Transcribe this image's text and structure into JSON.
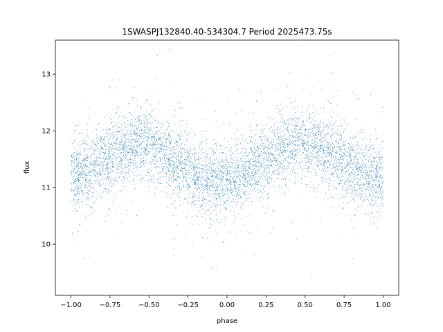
{
  "chart_data": {
    "type": "scatter",
    "title": "1SWASPJ132840.40-534304.7 Period 2025473.75s",
    "xlabel": "phase",
    "ylabel": "flux",
    "xlim": [
      -1.1,
      1.1
    ],
    "ylim": [
      9.1,
      13.6
    ],
    "x_ticks": [
      -1.0,
      -0.75,
      -0.5,
      -0.25,
      0.0,
      0.25,
      0.5,
      0.75,
      1.0
    ],
    "x_tick_labels": [
      "−1.00",
      "−0.75",
      "−0.50",
      "−0.25",
      "0.00",
      "0.25",
      "0.50",
      "0.75",
      "1.00"
    ],
    "y_ticks": [
      10,
      11,
      12,
      13
    ],
    "y_tick_labels": [
      "10",
      "11",
      "12",
      "13"
    ],
    "grid": false,
    "marker_color": "#1f77b4",
    "series": [
      {
        "x": [
          -1.0,
          -0.95,
          -0.9,
          -0.85,
          -0.8,
          -0.75,
          -0.7,
          -0.65,
          -0.6,
          -0.55,
          -0.5,
          -0.45,
          -0.4,
          -0.35,
          -0.3,
          -0.25,
          -0.2,
          -0.15,
          -0.1,
          -0.05,
          0.0,
          0.05,
          0.1,
          0.15,
          0.2,
          0.25,
          0.3,
          0.35,
          0.4,
          0.45,
          0.5,
          0.55,
          0.6,
          0.65,
          0.7,
          0.75,
          0.8,
          0.85,
          0.9,
          0.95,
          1.0
        ],
        "values": [
          11.2,
          11.25,
          11.3,
          11.35,
          11.45,
          11.55,
          11.65,
          11.7,
          11.75,
          11.8,
          11.75,
          11.7,
          11.6,
          11.5,
          11.4,
          11.3,
          11.2,
          11.15,
          11.1,
          11.1,
          11.1,
          11.15,
          11.2,
          11.3,
          11.4,
          11.5,
          11.6,
          11.7,
          11.75,
          11.8,
          11.75,
          11.7,
          11.65,
          11.6,
          11.5,
          11.4,
          11.35,
          11.3,
          11.25,
          11.2,
          11.2
        ]
      }
    ]
  }
}
